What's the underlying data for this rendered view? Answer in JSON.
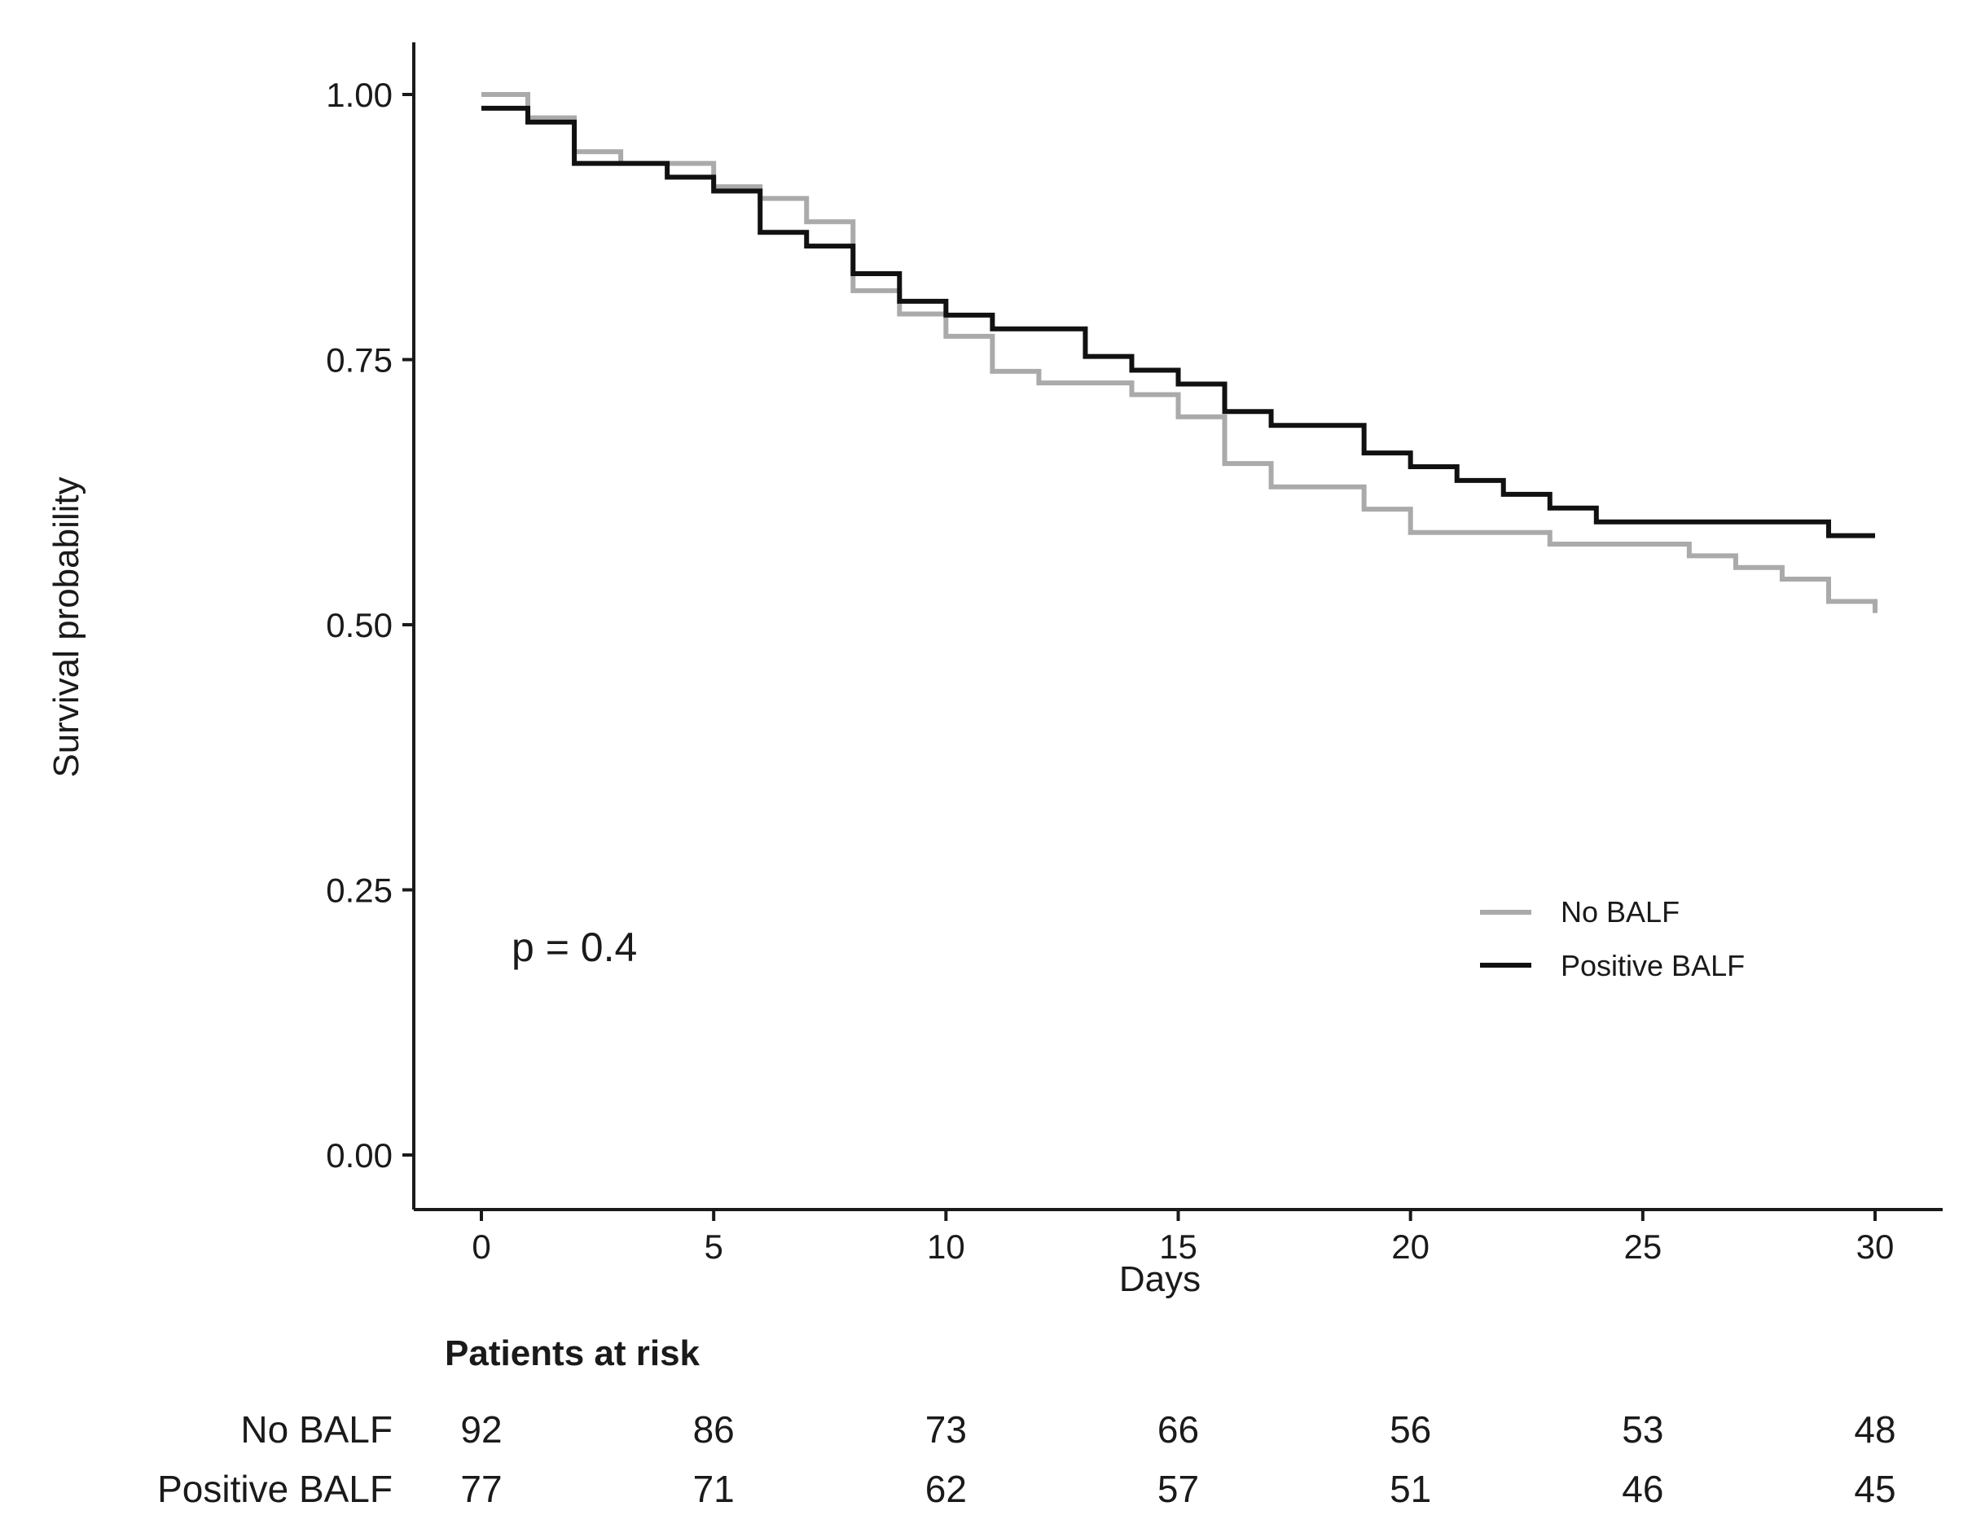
{
  "chart_data": {
    "type": "line",
    "subtype": "kaplan-meier",
    "title": "",
    "xlabel": "Days",
    "ylabel": "Survival probability",
    "xlim": [
      0,
      30
    ],
    "ylim": [
      0,
      1
    ],
    "x_ticks": [
      0,
      5,
      10,
      15,
      20,
      25,
      30
    ],
    "x_tick_labels": [
      "0",
      "5",
      "10",
      "15",
      "20",
      "25",
      "30"
    ],
    "y_ticks": [
      0,
      0.25,
      0.5,
      0.75,
      1
    ],
    "y_tick_labels": [
      "0.00",
      "0.25",
      "0.50",
      "0.75",
      "1.00"
    ],
    "grid": false,
    "legend_position": "bottom-right",
    "annotation": "p = 0.4",
    "series": [
      {
        "name": "No BALF",
        "color": "#aaaaaa",
        "x": [
          0,
          1,
          2,
          3,
          5,
          6,
          7,
          8,
          9,
          10,
          11,
          12,
          14,
          15,
          16,
          17,
          19,
          20,
          23,
          26,
          27,
          28,
          29,
          30
        ],
        "y": [
          1.0,
          0.978,
          0.946,
          0.935,
          0.913,
          0.902,
          0.88,
          0.815,
          0.793,
          0.772,
          0.739,
          0.728,
          0.717,
          0.696,
          0.652,
          0.63,
          0.609,
          0.587,
          0.576,
          0.565,
          0.554,
          0.543,
          0.522,
          0.511
        ]
      },
      {
        "name": "Positive BALF",
        "color": "#111111",
        "x": [
          0,
          1,
          2,
          4,
          5,
          6,
          7,
          8,
          9,
          10,
          11,
          13,
          14,
          15,
          16,
          17,
          19,
          20,
          21,
          22,
          23,
          24,
          29,
          30
        ],
        "y": [
          0.987,
          0.974,
          0.935,
          0.922,
          0.909,
          0.87,
          0.857,
          0.831,
          0.805,
          0.792,
          0.779,
          0.753,
          0.74,
          0.727,
          0.701,
          0.688,
          0.662,
          0.649,
          0.636,
          0.623,
          0.61,
          0.597,
          0.584,
          0.584
        ]
      }
    ],
    "risk_table": {
      "title": "Patients at risk",
      "times": [
        0,
        5,
        10,
        15,
        20,
        25,
        30
      ],
      "rows": [
        {
          "name": "No BALF",
          "values": [
            "92",
            "86",
            "73",
            "66",
            "56",
            "53",
            "48"
          ]
        },
        {
          "name": "Positive BALF",
          "values": [
            "77",
            "71",
            "62",
            "57",
            "51",
            "46",
            "45"
          ]
        }
      ]
    }
  }
}
